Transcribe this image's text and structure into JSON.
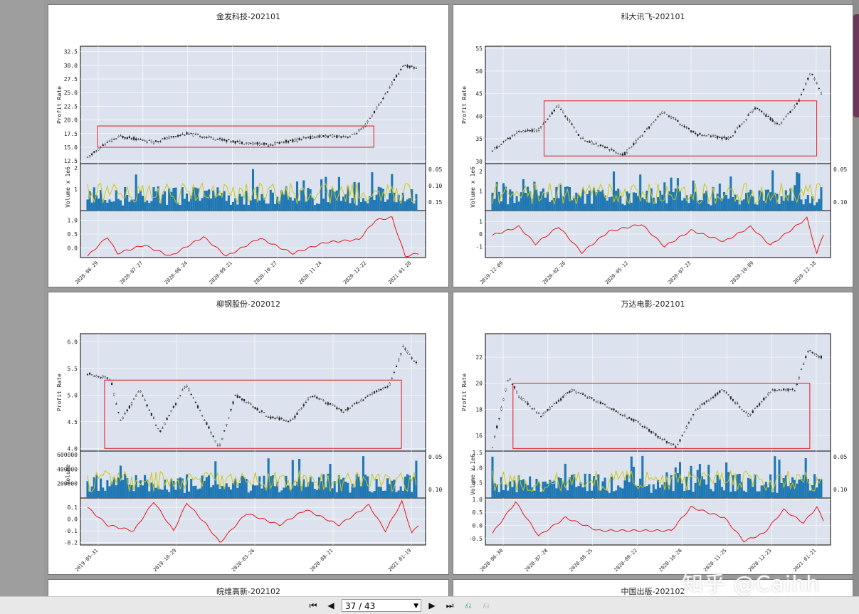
{
  "viewer": {
    "page_indicator": "37 / 43",
    "watermark": "知乎 @Caihh"
  },
  "colors": {
    "plot_bg": "#dde3ee",
    "candle": "#222222",
    "box": "#e8141a",
    "volume_bar": "#1f77b4",
    "volume_line": "#c8c81a",
    "oscillator": "#e8141a"
  },
  "chart_data": [
    {
      "type": "candlestick",
      "title": "金发科技-202101",
      "ylabel": "Profit Rate",
      "vol_label": "Volume x 1e6",
      "price_ticks": [
        "12.5",
        "15.0",
        "17.5",
        "20.0",
        "22.5",
        "25.0",
        "27.5",
        "30.0",
        "32.5"
      ],
      "price_range": [
        12.0,
        33.5
      ],
      "price_shape": [
        [
          0,
          13.0
        ],
        [
          0.05,
          15.5
        ],
        [
          0.1,
          17.0
        ],
        [
          0.2,
          16.0
        ],
        [
          0.3,
          17.5
        ],
        [
          0.45,
          16.0
        ],
        [
          0.55,
          15.5
        ],
        [
          0.7,
          17.0
        ],
        [
          0.8,
          17.0
        ],
        [
          0.84,
          18.5
        ],
        [
          0.9,
          24.0
        ],
        [
          0.96,
          30.0
        ],
        [
          1.0,
          29.5
        ]
      ],
      "box_price": [
        15.0,
        18.9
      ],
      "box_x": [
        0.05,
        0.85
      ],
      "vol_ticks_left": [
        "1",
        "2"
      ],
      "vol_range": [
        0,
        2.2
      ],
      "vol_ticks_right": [
        "0.05",
        "0.10",
        "0.15"
      ],
      "osc_ticks": [
        "0.0",
        "0.5",
        "1.0"
      ],
      "osc_range": [
        -0.35,
        1.35
      ],
      "osc_shape": [
        [
          0,
          -0.3
        ],
        [
          0.06,
          0.4
        ],
        [
          0.09,
          -0.2
        ],
        [
          0.17,
          0.1
        ],
        [
          0.25,
          -0.3
        ],
        [
          0.35,
          0.4
        ],
        [
          0.42,
          -0.3
        ],
        [
          0.52,
          0.35
        ],
        [
          0.62,
          -0.2
        ],
        [
          0.72,
          0.2
        ],
        [
          0.82,
          0.3
        ],
        [
          0.87,
          1.0
        ],
        [
          0.92,
          1.1
        ],
        [
          0.96,
          -0.3
        ],
        [
          1.0,
          -0.2
        ]
      ],
      "x_labels": [
        "2020-06-29",
        "2020-07-27",
        "2020-08-24",
        "2020-09-21",
        "2020-10-27",
        "2020-11-24",
        "2020-12-22",
        "2021-01-20"
      ]
    },
    {
      "type": "candlestick",
      "title": "科大讯飞-202101",
      "ylabel": "Profit Rate",
      "vol_label": "Volume x 1e6",
      "price_ticks": [
        "30",
        "35",
        "40",
        "45",
        "50",
        "55"
      ],
      "price_range": [
        29.5,
        55.5
      ],
      "price_shape": [
        [
          0,
          32.5
        ],
        [
          0.08,
          36.5
        ],
        [
          0.14,
          37.0
        ],
        [
          0.2,
          42.5
        ],
        [
          0.27,
          35.0
        ],
        [
          0.4,
          31.5
        ],
        [
          0.52,
          41.0
        ],
        [
          0.62,
          36.0
        ],
        [
          0.72,
          35.0
        ],
        [
          0.8,
          42.0
        ],
        [
          0.87,
          38.0
        ],
        [
          0.93,
          43.0
        ],
        [
          0.97,
          50.0
        ],
        [
          1.0,
          45.0
        ]
      ],
      "box_price": [
        31.2,
        43.4
      ],
      "box_x": [
        0.17,
        0.96
      ],
      "vol_ticks_left": [
        "1",
        "2"
      ],
      "vol_range": [
        0,
        2.4
      ],
      "vol_ticks_right": [
        "0.05",
        "0.10"
      ],
      "osc_ticks": [
        "-1",
        "0",
        "1"
      ],
      "osc_range": [
        -1.9,
        1.9
      ],
      "osc_shape": [
        [
          0,
          -0.1
        ],
        [
          0.08,
          0.6
        ],
        [
          0.13,
          -0.8
        ],
        [
          0.2,
          0.6
        ],
        [
          0.27,
          -1.5
        ],
        [
          0.35,
          0.2
        ],
        [
          0.45,
          0.8
        ],
        [
          0.52,
          -1.0
        ],
        [
          0.6,
          0.3
        ],
        [
          0.7,
          -0.6
        ],
        [
          0.78,
          0.6
        ],
        [
          0.84,
          -0.9
        ],
        [
          0.9,
          0.3
        ],
        [
          0.95,
          1.3
        ],
        [
          0.98,
          -1.6
        ],
        [
          1.0,
          0.0
        ]
      ],
      "x_labels": [
        "2019-12-09",
        "2020-02-26",
        "2020-05-12",
        "2020-07-23",
        "2020-10-09",
        "2020-12-18"
      ]
    },
    {
      "type": "candlestick",
      "title": "柳钢股份-202012",
      "ylabel": "Profit Rate",
      "vol_label": "Volume",
      "price_ticks": [
        "4.0",
        "4.5",
        "5.0",
        "5.5",
        "6.0"
      ],
      "price_range": [
        3.95,
        6.15
      ],
      "price_shape": [
        [
          0,
          5.4
        ],
        [
          0.07,
          5.3
        ],
        [
          0.1,
          4.5
        ],
        [
          0.16,
          5.1
        ],
        [
          0.22,
          4.3
        ],
        [
          0.3,
          5.2
        ],
        [
          0.36,
          4.5
        ],
        [
          0.4,
          4.0
        ],
        [
          0.45,
          5.0
        ],
        [
          0.55,
          4.6
        ],
        [
          0.62,
          4.5
        ],
        [
          0.68,
          5.0
        ],
        [
          0.78,
          4.7
        ],
        [
          0.86,
          5.0
        ],
        [
          0.92,
          5.2
        ],
        [
          0.96,
          5.9
        ],
        [
          1.0,
          5.6
        ]
      ],
      "box_price": [
        4.0,
        5.28
      ],
      "box_x": [
        0.07,
        0.93
      ],
      "vol_ticks_left": [
        "200000",
        "400000",
        "600000"
      ],
      "vol_range": [
        0,
        650000
      ],
      "vol_ticks_right": [
        "0.05",
        "0.10"
      ],
      "osc_ticks": [
        "-0.2",
        "-0.1",
        "0.0",
        "0.1"
      ],
      "osc_range": [
        -0.22,
        0.18
      ],
      "osc_shape": [
        [
          0,
          0.1
        ],
        [
          0.06,
          -0.05
        ],
        [
          0.14,
          -0.1
        ],
        [
          0.2,
          0.15
        ],
        [
          0.26,
          -0.1
        ],
        [
          0.3,
          0.14
        ],
        [
          0.36,
          -0.05
        ],
        [
          0.4,
          -0.2
        ],
        [
          0.48,
          0.05
        ],
        [
          0.58,
          -0.05
        ],
        [
          0.66,
          0.08
        ],
        [
          0.76,
          -0.05
        ],
        [
          0.85,
          0.12
        ],
        [
          0.9,
          -0.1
        ],
        [
          0.95,
          0.15
        ],
        [
          0.98,
          -0.12
        ],
        [
          1.0,
          -0.05
        ]
      ],
      "x_labels": [
        "2019-05-31",
        "2019-10-29",
        "2020-03-26",
        "2020-08-21",
        "2021-01-19"
      ]
    },
    {
      "type": "candlestick",
      "title": "万达电影-202101",
      "ylabel": "Profit Rate",
      "vol_label": "Volume x 1e6",
      "price_ticks": [
        "16",
        "18",
        "20",
        "22"
      ],
      "price_range": [
        14.8,
        23.8
      ],
      "price_shape": [
        [
          0,
          15.2
        ],
        [
          0.05,
          20.5
        ],
        [
          0.08,
          19.0
        ],
        [
          0.15,
          17.5
        ],
        [
          0.24,
          19.5
        ],
        [
          0.33,
          18.5
        ],
        [
          0.44,
          17.0
        ],
        [
          0.5,
          16.0
        ],
        [
          0.56,
          15.1
        ],
        [
          0.62,
          18.0
        ],
        [
          0.7,
          19.5
        ],
        [
          0.78,
          17.5
        ],
        [
          0.85,
          19.5
        ],
        [
          0.92,
          19.5
        ],
        [
          0.96,
          22.5
        ],
        [
          1.0,
          22.0
        ]
      ],
      "box_price": [
        15.0,
        20.0
      ],
      "box_x": [
        0.08,
        0.94
      ],
      "vol_ticks_left": [
        "0.5",
        "1.0",
        "1.5"
      ],
      "vol_range": [
        0,
        1.55
      ],
      "vol_ticks_right": [
        "0.05",
        "0.10"
      ],
      "osc_ticks": [
        "-0.5",
        "0.0",
        "0.5",
        "1.0"
      ],
      "osc_range": [
        -0.75,
        1.05
      ],
      "osc_shape": [
        [
          0,
          -0.3
        ],
        [
          0.07,
          0.9
        ],
        [
          0.14,
          -0.4
        ],
        [
          0.22,
          0.3
        ],
        [
          0.32,
          -0.2
        ],
        [
          0.44,
          -0.2
        ],
        [
          0.54,
          -0.2
        ],
        [
          0.6,
          0.7
        ],
        [
          0.7,
          0.3
        ],
        [
          0.76,
          -0.6
        ],
        [
          0.82,
          -0.3
        ],
        [
          0.88,
          0.6
        ],
        [
          0.94,
          0.1
        ],
        [
          0.98,
          0.7
        ],
        [
          1.0,
          0.2
        ]
      ],
      "x_labels": [
        "2020-06-30",
        "2020-07-28",
        "2020-08-25",
        "2020-09-22",
        "2020-10-28",
        "2020-11-25",
        "2020-12-23",
        "2021-01-21"
      ]
    },
    {
      "type": "candlestick",
      "title": "皖维高新-202102"
    },
    {
      "type": "candlestick",
      "title": "中国出版-202102"
    }
  ]
}
